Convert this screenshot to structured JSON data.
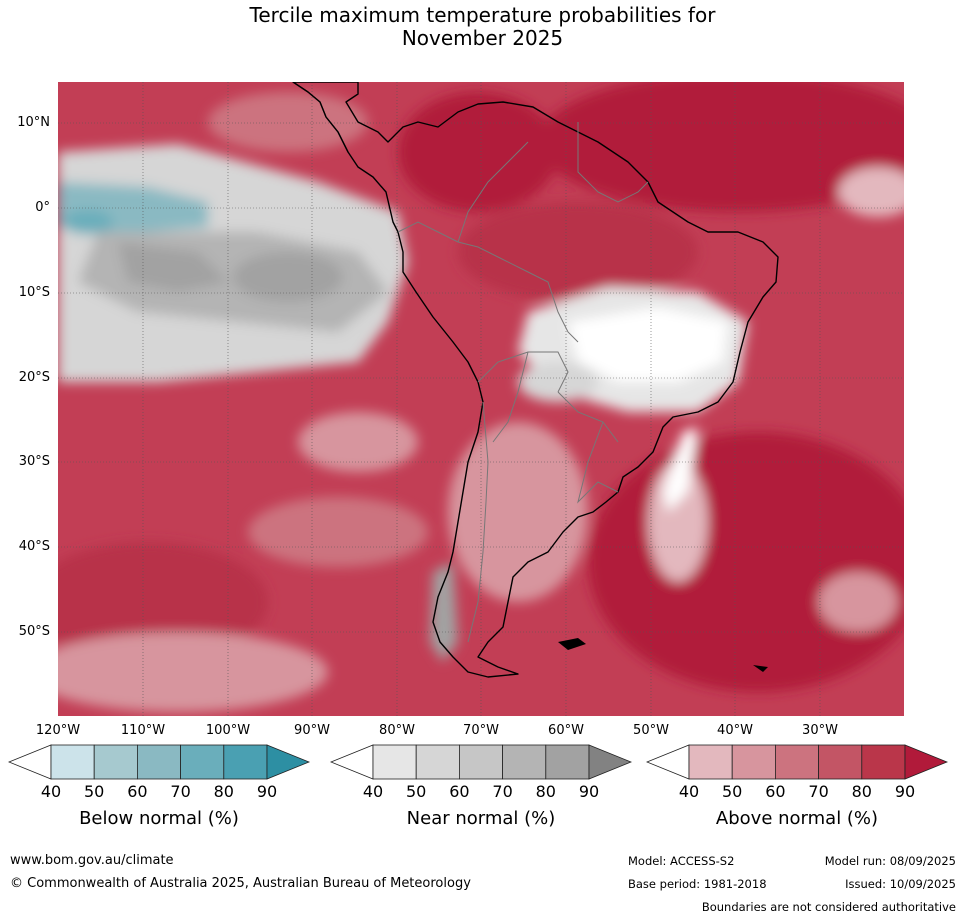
{
  "title": {
    "line1": "Tercile maximum temperature probabilities for",
    "line2": "November 2025"
  },
  "map": {
    "lat_labels": [
      "10°N",
      "0°",
      "10°S",
      "20°S",
      "30°S",
      "40°S",
      "50°S"
    ],
    "lon_labels": [
      "120°W",
      "110°W",
      "100°W",
      "90°W",
      "80°W",
      "70°W",
      "60°W",
      "50°W",
      "40°W",
      "30°W"
    ]
  },
  "colorbars": [
    {
      "title": "Below normal (%)",
      "ticks": [
        "40",
        "50",
        "60",
        "70",
        "80",
        "90"
      ],
      "colors": [
        "#ffffff",
        "#cce3ea",
        "#a6c9cf",
        "#8ab9c2",
        "#6aaebb",
        "#4aa0b2",
        "#2d8fa3"
      ]
    },
    {
      "title": "Near normal (%)",
      "ticks": [
        "40",
        "50",
        "60",
        "70",
        "80",
        "90"
      ],
      "colors": [
        "#ffffff",
        "#e6e6e6",
        "#d6d6d6",
        "#c6c6c6",
        "#b4b4b4",
        "#a2a2a2",
        "#828282"
      ]
    },
    {
      "title": "Above normal (%)",
      "ticks": [
        "40",
        "50",
        "60",
        "70",
        "80",
        "90"
      ],
      "colors": [
        "#ffffff",
        "#e3b8be",
        "#d7959e",
        "#cc737f",
        "#c35565",
        "#ba364a",
        "#b11a3a"
      ]
    }
  ],
  "footer": {
    "website": "www.bom.gov.au/climate",
    "copyright": "© Commonwealth of Australia 2025, Australian Bureau of Meteorology",
    "model": "Model: ACCESS-S2",
    "model_run": "Model run: 08/09/2025",
    "base_period": "Base period: 1981-2018",
    "issued": "Issued: 10/09/2025",
    "disclaimer": "Boundaries are not considered authoritative"
  }
}
